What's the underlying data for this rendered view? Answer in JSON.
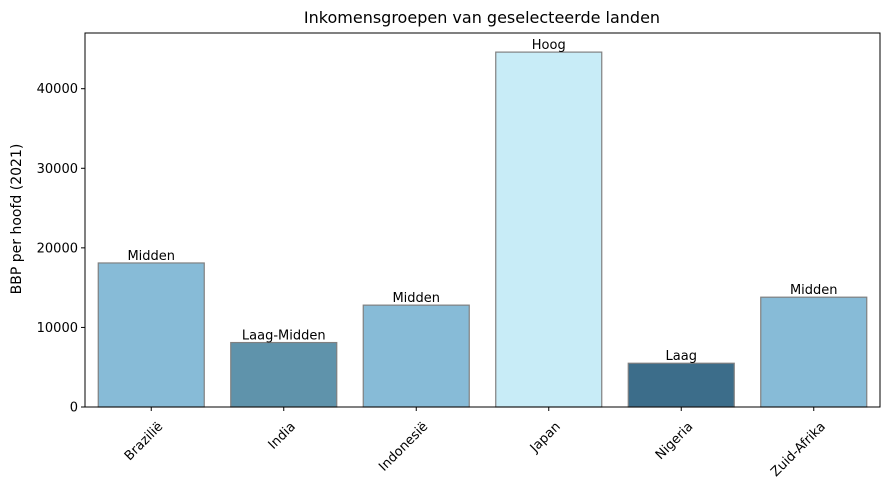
{
  "chart_data": {
    "type": "bar",
    "title": "Inkomensgroepen van geselecteerde landen",
    "xlabel": "",
    "ylabel": "BBP per hoofd (2021)",
    "ylim": [
      0,
      47000
    ],
    "yticks": [
      0,
      10000,
      20000,
      30000,
      40000
    ],
    "grid": false,
    "categories": [
      "Brazilië",
      "India",
      "Indonesië",
      "Japan",
      "Nigeria",
      "Zuid-Afrika"
    ],
    "values": [
      18100,
      8100,
      12800,
      44600,
      5500,
      13800
    ],
    "labels": [
      "Midden",
      "Laag-Midden",
      "Midden",
      "Hoog",
      "Laag",
      "Midden"
    ],
    "colors": [
      "#87bbd7",
      "#5f93ab",
      "#87bbd7",
      "#c8ecf7",
      "#3c6d8a",
      "#87bbd7"
    ],
    "edge_color": "#808080"
  }
}
